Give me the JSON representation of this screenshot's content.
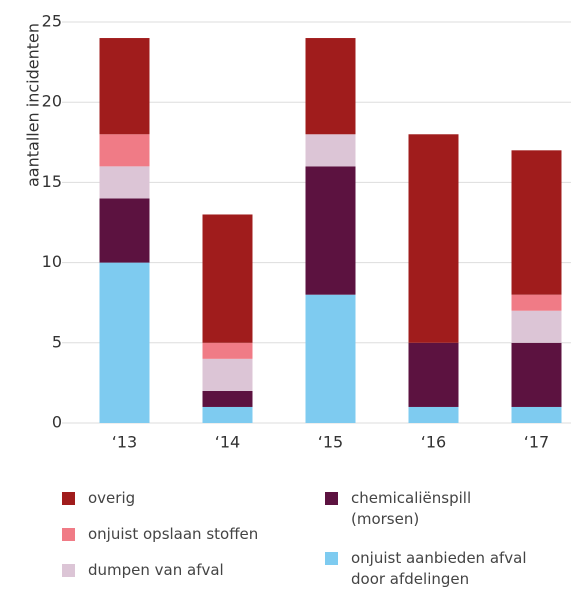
{
  "chart_data": {
    "type": "stacked_bar",
    "y_label": "aantallen incidenten",
    "categories": [
      "‘13",
      "‘14",
      "‘15",
      "‘16",
      "‘17"
    ],
    "series": [
      {
        "name": "onjuist aanbieden afval door afdelingen",
        "color": "#7ecbf0",
        "values": [
          10,
          1,
          8,
          1,
          1
        ]
      },
      {
        "name": "chemicaliënspill (morsen)",
        "color": "#5c1240",
        "values": [
          4,
          1,
          8,
          4,
          4
        ]
      },
      {
        "name": "dumpen van afval",
        "color": "#dcc5d6",
        "values": [
          2,
          2,
          2,
          0,
          2
        ]
      },
      {
        "name": "onjuist opslaan stoffen",
        "color": "#f07b86",
        "values": [
          2,
          1,
          0,
          0,
          1
        ]
      },
      {
        "name": "overig",
        "color": "#a01c1c",
        "values": [
          6,
          8,
          6,
          13,
          9
        ]
      }
    ],
    "ylim": [
      0,
      25
    ],
    "yticks": [
      0,
      5,
      10,
      15,
      20,
      25
    ],
    "grid": true
  }
}
